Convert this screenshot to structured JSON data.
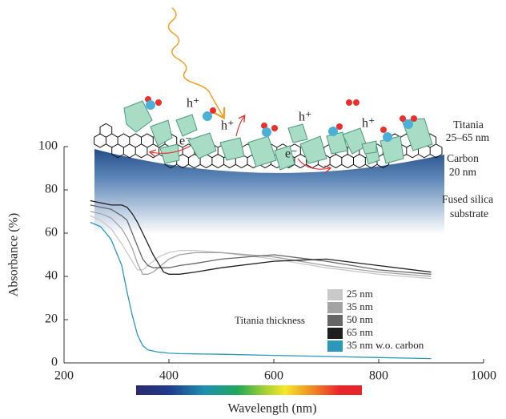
{
  "chart_data": {
    "type": "line",
    "x_label": "Wavelength (nm)",
    "y_label": "Absorbance (%)",
    "legend_title": "Titania thickness",
    "x": [
      250,
      270,
      290,
      310,
      320,
      330,
      340,
      350,
      360,
      370,
      380,
      390,
      400,
      420,
      450,
      500,
      600,
      700,
      800,
      900
    ],
    "series": [
      {
        "name": "25 nm",
        "color": "#c9c9c9",
        "values": [
          68,
          66,
          62,
          55,
          51,
          47,
          43,
          43,
          45,
          47,
          49,
          50,
          51,
          52,
          52,
          51,
          48,
          44,
          41,
          39
        ]
      },
      {
        "name": "35 nm",
        "color": "#a3a3a3",
        "values": [
          70,
          69,
          67,
          62,
          58,
          53,
          46,
          41,
          41,
          42,
          44,
          46,
          48,
          50,
          51,
          51,
          49,
          45,
          42,
          40
        ]
      },
      {
        "name": "50 nm",
        "color": "#666666",
        "values": [
          73,
          72,
          71,
          68,
          66,
          60,
          54,
          48,
          45,
          44,
          44,
          44,
          44,
          45,
          46,
          48,
          50,
          47,
          43,
          41
        ]
      },
      {
        "name": "65 nm",
        "color": "#1e1e1e",
        "values": [
          75,
          74,
          73,
          73,
          72,
          69,
          65,
          60,
          55,
          50,
          46,
          42,
          41,
          41,
          42,
          44,
          47,
          48,
          45,
          42
        ]
      },
      {
        "name": "35 nm w.o. carbon",
        "color": "#2a97bb",
        "values": [
          65,
          63,
          57,
          45,
          33,
          22,
          13,
          8,
          6,
          5.5,
          5,
          4.8,
          4.5,
          4.3,
          4.2,
          4,
          3.5,
          3,
          2.5,
          2
        ]
      }
    ],
    "xlim": [
      200,
      1000
    ],
    "xticks": [
      200,
      400,
      600,
      800,
      1000
    ],
    "ylim": [
      0,
      100
    ],
    "yticks": [
      0,
      20,
      40,
      60,
      80,
      100
    ],
    "grid": false,
    "annotations": [
      "h⁺",
      "h⁺",
      "h⁺",
      "h⁺",
      "e⁻",
      "e⁻",
      "Titania",
      "25–65 nm",
      "Carbon",
      "20 nm",
      "Fused silica",
      "substrate"
    ]
  }
}
